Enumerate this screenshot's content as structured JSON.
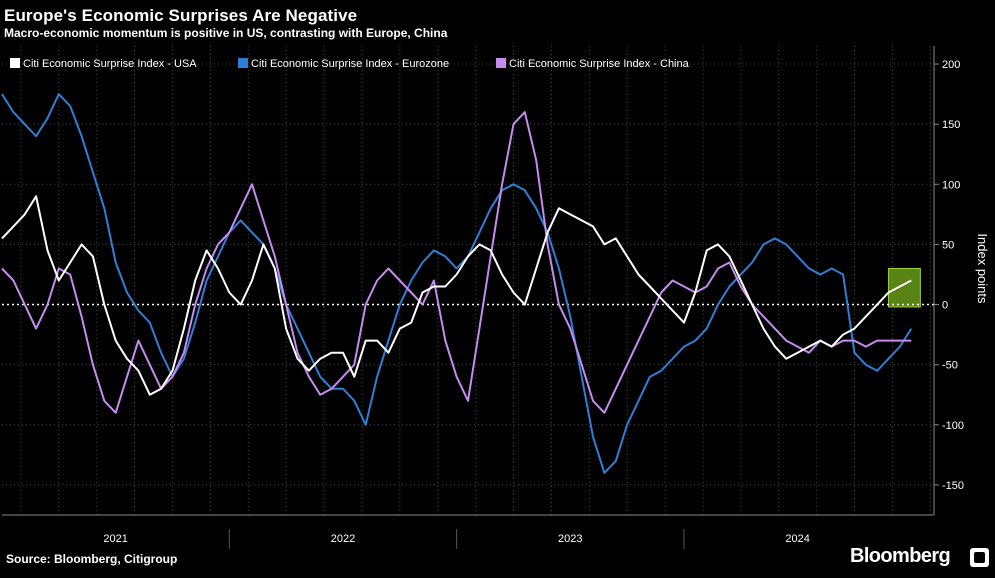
{
  "header": {
    "title": "Europe's Economic Surprises Are Negative",
    "subtitle": "Macro-economic momentum is positive in US, contrasting with Europe, China"
  },
  "footer": {
    "source": "Source: Bloomberg, Citigroup",
    "brand": "Bloomberg"
  },
  "colors": {
    "background": "#000000",
    "usa": "#ffffff",
    "eurozone": "#2f7fd8",
    "china": "#c58bef",
    "grid": "#4a4a4a",
    "highlight": "#6a9a1a"
  },
  "chart_data": {
    "type": "line",
    "title": "Europe's Economic Surprises Are Negative",
    "subtitle": "Macro-economic momentum is positive in US, contrasting with Europe, China",
    "ylabel": "Index points",
    "xlabel": "",
    "ylim": [
      -175,
      215
    ],
    "xlim": [
      2020.5,
      2024.6
    ],
    "y_ticks": [
      200,
      150,
      100,
      50,
      0,
      -50,
      -100,
      -150
    ],
    "y_tick_labels": [
      "200",
      "150",
      "100",
      "50",
      "0",
      "-50",
      "-100",
      "-150"
    ],
    "x_labels": [
      {
        "label": "2021",
        "x": 2021.0
      },
      {
        "label": "2022",
        "x": 2022.0
      },
      {
        "label": "2023",
        "x": 2023.0
      },
      {
        "label": "2024",
        "x": 2024.0
      }
    ],
    "x_separators": [
      2021.5,
      2022.5,
      2023.5
    ],
    "grid": true,
    "zero_line": "dotted",
    "legend_position": "top-left",
    "highlight_box": {
      "x_start": 2024.4,
      "x_end": 2024.54,
      "y_start": -2,
      "y_end": 30
    },
    "series": [
      {
        "name": "Citi Economic Surprise Index - USA",
        "color": "#ffffff",
        "x": [
          2020.5,
          2020.55,
          2020.6,
          2020.65,
          2020.7,
          2020.75,
          2020.8,
          2020.85,
          2020.9,
          2020.95,
          2021.0,
          2021.05,
          2021.1,
          2021.15,
          2021.2,
          2021.25,
          2021.3,
          2021.35,
          2021.4,
          2021.45,
          2021.5,
          2021.55,
          2021.6,
          2021.65,
          2021.7,
          2021.75,
          2021.8,
          2021.85,
          2021.9,
          2021.95,
          2022.0,
          2022.05,
          2022.1,
          2022.15,
          2022.2,
          2022.25,
          2022.3,
          2022.35,
          2022.4,
          2022.45,
          2022.5,
          2022.55,
          2022.6,
          2022.65,
          2022.7,
          2022.75,
          2022.8,
          2022.85,
          2022.9,
          2022.95,
          2023.0,
          2023.05,
          2023.1,
          2023.15,
          2023.2,
          2023.25,
          2023.3,
          2023.35,
          2023.4,
          2023.45,
          2023.5,
          2023.55,
          2023.6,
          2023.65,
          2023.7,
          2023.75,
          2023.8,
          2023.85,
          2023.9,
          2023.95,
          2024.0,
          2024.05,
          2024.1,
          2024.15,
          2024.2,
          2024.25,
          2024.3,
          2024.35,
          2024.4,
          2024.45,
          2024.5
        ],
        "values": [
          55,
          65,
          75,
          90,
          45,
          20,
          35,
          50,
          40,
          0,
          -30,
          -45,
          -55,
          -75,
          -70,
          -55,
          -20,
          20,
          45,
          30,
          10,
          0,
          20,
          50,
          30,
          -20,
          -45,
          -55,
          -45,
          -40,
          -40,
          -60,
          -30,
          -30,
          -40,
          -20,
          -15,
          10,
          15,
          15,
          25,
          40,
          50,
          45,
          25,
          10,
          0,
          30,
          60,
          80,
          75,
          70,
          65,
          50,
          55,
          40,
          25,
          15,
          5,
          -5,
          -15,
          10,
          45,
          50,
          40,
          20,
          0,
          -20,
          -35,
          -45,
          -40,
          -35,
          -30,
          -35,
          -25,
          -20,
          -10,
          0,
          10,
          15,
          20
        ]
      },
      {
        "name": "Citi Economic Surprise Index - Eurozone",
        "color": "#2f7fd8",
        "x": [
          2020.5,
          2020.55,
          2020.6,
          2020.65,
          2020.7,
          2020.75,
          2020.8,
          2020.85,
          2020.9,
          2020.95,
          2021.0,
          2021.05,
          2021.1,
          2021.15,
          2021.2,
          2021.25,
          2021.3,
          2021.35,
          2021.4,
          2021.45,
          2021.5,
          2021.55,
          2021.6,
          2021.65,
          2021.7,
          2021.75,
          2021.8,
          2021.85,
          2021.9,
          2021.95,
          2022.0,
          2022.05,
          2022.1,
          2022.15,
          2022.2,
          2022.25,
          2022.3,
          2022.35,
          2022.4,
          2022.45,
          2022.5,
          2022.55,
          2022.6,
          2022.65,
          2022.7,
          2022.75,
          2022.8,
          2022.85,
          2022.9,
          2022.95,
          2023.0,
          2023.05,
          2023.1,
          2023.15,
          2023.2,
          2023.25,
          2023.3,
          2023.35,
          2023.4,
          2023.45,
          2023.5,
          2023.55,
          2023.6,
          2023.65,
          2023.7,
          2023.75,
          2023.8,
          2023.85,
          2023.9,
          2023.95,
          2024.0,
          2024.05,
          2024.1,
          2024.15,
          2024.2,
          2024.25,
          2024.3,
          2024.35,
          2024.4,
          2024.45,
          2024.5
        ],
        "values": [
          175,
          160,
          150,
          140,
          155,
          175,
          165,
          140,
          110,
          80,
          35,
          10,
          -5,
          -15,
          -40,
          -60,
          -45,
          -15,
          20,
          40,
          60,
          70,
          60,
          50,
          30,
          0,
          -20,
          -40,
          -60,
          -70,
          -70,
          -80,
          -100,
          -60,
          -30,
          0,
          20,
          35,
          45,
          40,
          30,
          40,
          60,
          80,
          95,
          100,
          95,
          80,
          60,
          30,
          -10,
          -60,
          -110,
          -140,
          -130,
          -100,
          -80,
          -60,
          -55,
          -45,
          -35,
          -30,
          -20,
          0,
          15,
          25,
          35,
          50,
          55,
          50,
          40,
          30,
          25,
          30,
          25,
          -40,
          -50,
          -55,
          -45,
          -35,
          -20
        ]
      },
      {
        "name": "Citi Economic Surprise Index - China",
        "color": "#c58bef",
        "x": [
          2020.5,
          2020.55,
          2020.6,
          2020.65,
          2020.7,
          2020.75,
          2020.8,
          2020.85,
          2020.9,
          2020.95,
          2021.0,
          2021.05,
          2021.1,
          2021.15,
          2021.2,
          2021.25,
          2021.3,
          2021.35,
          2021.4,
          2021.45,
          2021.5,
          2021.55,
          2021.6,
          2021.65,
          2021.7,
          2021.75,
          2021.8,
          2021.85,
          2021.9,
          2021.95,
          2022.0,
          2022.05,
          2022.1,
          2022.15,
          2022.2,
          2022.25,
          2022.3,
          2022.35,
          2022.4,
          2022.45,
          2022.5,
          2022.55,
          2022.6,
          2022.65,
          2022.7,
          2022.75,
          2022.8,
          2022.85,
          2022.9,
          2022.95,
          2023.0,
          2023.05,
          2023.1,
          2023.15,
          2023.2,
          2023.25,
          2023.3,
          2023.35,
          2023.4,
          2023.45,
          2023.5,
          2023.55,
          2023.6,
          2023.65,
          2023.7,
          2023.75,
          2023.8,
          2023.85,
          2023.9,
          2023.95,
          2024.0,
          2024.05,
          2024.1,
          2024.15,
          2024.2,
          2024.25,
          2024.3,
          2024.35,
          2024.4,
          2024.45,
          2024.5
        ],
        "values": [
          30,
          20,
          0,
          -20,
          0,
          30,
          25,
          -10,
          -50,
          -80,
          -90,
          -60,
          -30,
          -50,
          -70,
          -60,
          -40,
          0,
          30,
          50,
          60,
          80,
          100,
          70,
          40,
          0,
          -40,
          -60,
          -75,
          -70,
          -60,
          -50,
          0,
          20,
          30,
          20,
          10,
          0,
          20,
          -30,
          -60,
          -80,
          -20,
          40,
          100,
          150,
          160,
          120,
          50,
          0,
          -20,
          -50,
          -80,
          -90,
          -70,
          -50,
          -30,
          -10,
          10,
          20,
          15,
          10,
          15,
          30,
          35,
          15,
          0,
          -10,
          -20,
          -30,
          -35,
          -40,
          -30,
          -35,
          -30,
          -30,
          -35,
          -30,
          -30,
          -30,
          -30
        ]
      }
    ]
  }
}
